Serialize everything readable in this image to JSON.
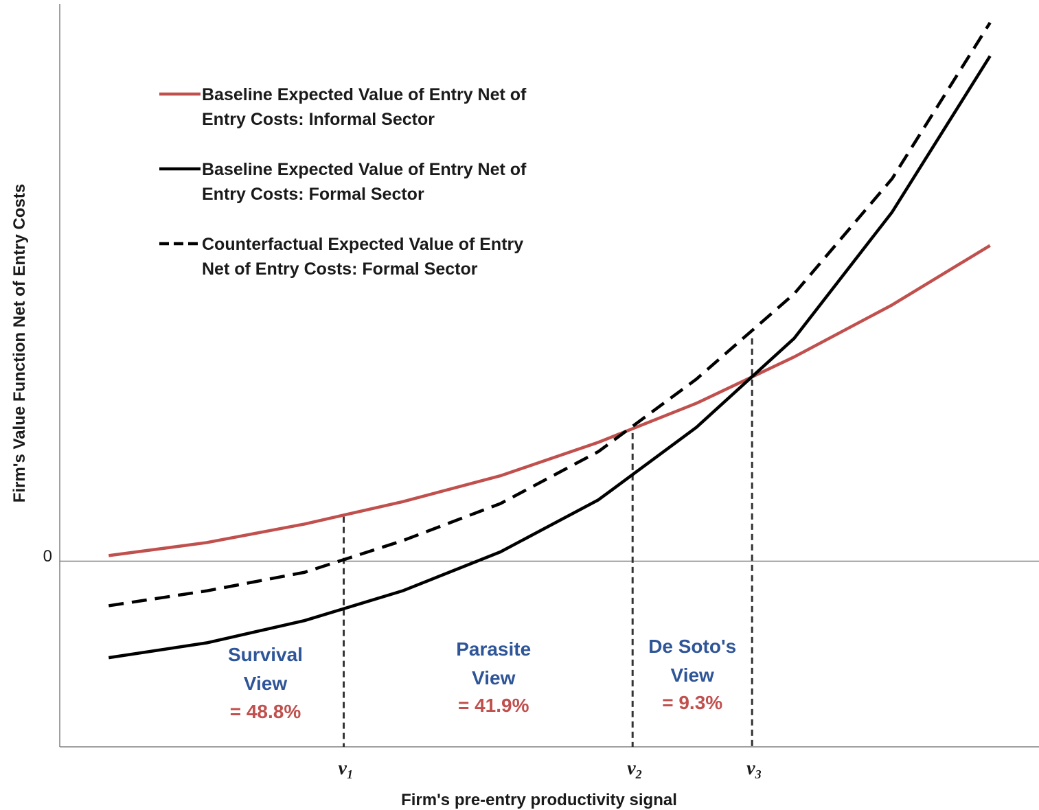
{
  "chart_data": {
    "type": "line",
    "title": "",
    "xlabel": "Firm's pre-entry productivity signal",
    "ylabel": "Firm's Value Function Net of Entry Costs",
    "y_tick_zero": "0",
    "xlim": [
      0.5,
      10.5
    ],
    "ylim": [
      -5.0,
      15.0
    ],
    "grid": false,
    "legend_position": "top-left",
    "x": [
      1,
      2,
      3,
      4,
      5,
      6,
      7,
      8,
      9,
      10
    ],
    "series": [
      {
        "key": "informal",
        "name": "Baseline Expected Value of Entry Net of Entry Costs: Informal Sector",
        "name_lines": [
          "Baseline Expected Value of Entry Net of",
          "Entry Costs: Informal Sector"
        ],
        "style": "solid",
        "color": "#c0504d",
        "y": [
          0.15,
          0.5,
          1.0,
          1.6,
          2.3,
          3.2,
          4.25,
          5.5,
          6.9,
          8.5
        ]
      },
      {
        "key": "formal",
        "name": "Baseline Expected Value of Entry Net of Entry Costs: Formal Sector",
        "name_lines": [
          "Baseline Expected Value of Entry Net of",
          "Entry Costs: Formal Sector"
        ],
        "style": "solid",
        "color": "#000000",
        "y": [
          -2.6,
          -2.2,
          -1.6,
          -0.8,
          0.25,
          1.65,
          3.6,
          6.0,
          9.4,
          13.6
        ]
      },
      {
        "key": "counterfactual",
        "name": "Counterfactual Expected Value of Entry Net of Entry Costs: Formal Sector",
        "name_lines": [
          "Counterfactual Expected Value of Entry",
          "Net of Entry Costs: Formal Sector"
        ],
        "style": "dashed",
        "color": "#000000",
        "y": [
          -1.2,
          -0.8,
          -0.3,
          0.55,
          1.55,
          2.95,
          4.9,
          7.2,
          10.3,
          14.5
        ]
      }
    ],
    "thresholds": [
      {
        "label": "v",
        "sub": "1",
        "x": 3.4,
        "y_top": 1.2
      },
      {
        "label": "v",
        "sub": "2",
        "x": 6.35,
        "y_top": 3.45
      },
      {
        "label": "v",
        "sub": "3",
        "x": 7.57,
        "y_top": 6.0
      }
    ],
    "regions": [
      {
        "lines": [
          "Survival",
          "View"
        ],
        "share": "= 48.8%",
        "x": 2.6
      },
      {
        "lines": [
          "Parasite",
          "View"
        ],
        "share": "= 41.9%",
        "x": 4.93
      },
      {
        "lines": [
          "De Soto's",
          "View"
        ],
        "share": "= 9.3%",
        "x": 6.96
      }
    ],
    "colors": {
      "region_title": "#2e5597",
      "region_share": "#c0504d",
      "zero_line": "#808080",
      "axes": "#808080"
    }
  }
}
